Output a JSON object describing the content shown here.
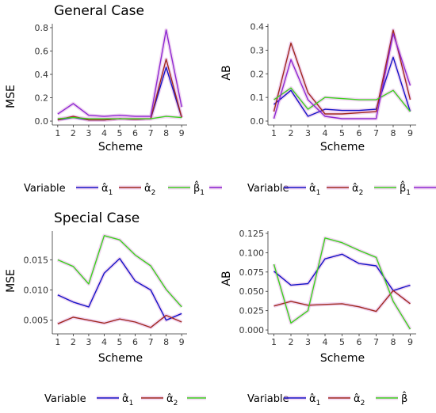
{
  "sections": [
    {
      "title": "General Case"
    },
    {
      "title": "Special Case"
    }
  ],
  "legend": {
    "variable_label": "Variable"
  },
  "colors": {
    "alpha1": "#1414c8",
    "alpha2": "#a0281e",
    "beta1": "#3cd21e",
    "extra": "#8c28d2",
    "glow": "#e6b4e6"
  },
  "chart_data": [
    {
      "type": "line",
      "section": "General Case",
      "xlabel": "Scheme",
      "ylabel": "MSE",
      "x": [
        1,
        2,
        3,
        4,
        5,
        6,
        7,
        8,
        9
      ],
      "xticks": [
        "1",
        "2",
        "3",
        "4",
        "5",
        "6",
        "7",
        "8",
        "9"
      ],
      "ylim": [
        -0.02,
        0.82
      ],
      "yticks": [
        0.0,
        0.2,
        0.4,
        0.6,
        0.8
      ],
      "ytick_labels": [
        "0.0",
        "0.2",
        "0.4",
        "0.6",
        "0.8"
      ],
      "grid": false,
      "series": [
        {
          "key": "alpha1",
          "label": "α̂1",
          "values": [
            0.01,
            0.03,
            0.01,
            0.01,
            0.02,
            0.015,
            0.02,
            0.46,
            0.03
          ]
        },
        {
          "key": "alpha2",
          "label": "α̂2",
          "values": [
            0.01,
            0.04,
            0.01,
            0.01,
            0.02,
            0.015,
            0.02,
            0.53,
            0.03
          ]
        },
        {
          "key": "beta1",
          "label": "β̂1",
          "values": [
            0.02,
            0.03,
            0.02,
            0.02,
            0.02,
            0.02,
            0.02,
            0.04,
            0.03
          ]
        },
        {
          "key": "extra",
          "label": "",
          "values": [
            0.06,
            0.15,
            0.05,
            0.04,
            0.05,
            0.04,
            0.04,
            0.78,
            0.12
          ]
        }
      ],
      "legend": {
        "placement": "bottom",
        "items": [
          {
            "key": "alpha1",
            "label": "α̂1"
          },
          {
            "key": "alpha2",
            "label": "α̂2"
          },
          {
            "key": "beta1",
            "label": "β̂1"
          },
          {
            "key": "extra",
            "label": ""
          }
        ]
      }
    },
    {
      "type": "line",
      "section": "General Case",
      "xlabel": "Scheme",
      "ylabel": "AB",
      "x": [
        1,
        2,
        3,
        4,
        5,
        6,
        7,
        8,
        9
      ],
      "xticks": [
        "1",
        "2",
        "3",
        "4",
        "5",
        "6",
        "7",
        "8",
        "9"
      ],
      "ylim": [
        -0.01,
        0.405
      ],
      "yticks": [
        0.0,
        0.1,
        0.2,
        0.3,
        0.4
      ],
      "ytick_labels": [
        "0.0",
        "0.1",
        "0.2",
        "0.3",
        "0.4"
      ],
      "grid": false,
      "series": [
        {
          "key": "alpha1",
          "label": "α̂1",
          "values": [
            0.07,
            0.13,
            0.02,
            0.05,
            0.045,
            0.045,
            0.05,
            0.27,
            0.04
          ]
        },
        {
          "key": "alpha2",
          "label": "α̂2",
          "values": [
            0.04,
            0.33,
            0.12,
            0.03,
            0.03,
            0.035,
            0.04,
            0.385,
            0.09
          ]
        },
        {
          "key": "beta1",
          "label": "β̂1",
          "values": [
            0.09,
            0.14,
            0.05,
            0.1,
            0.095,
            0.09,
            0.09,
            0.13,
            0.04
          ]
        },
        {
          "key": "extra",
          "label": "",
          "values": [
            0.01,
            0.26,
            0.09,
            0.02,
            0.01,
            0.01,
            0.01,
            0.37,
            0.15
          ]
        }
      ],
      "legend": {
        "placement": "bottom",
        "items": [
          {
            "key": "alpha1",
            "label": "α̂1"
          },
          {
            "key": "alpha2",
            "label": "α̂2"
          },
          {
            "key": "beta1",
            "label": "β̂1"
          },
          {
            "key": "extra",
            "label": ""
          }
        ]
      }
    },
    {
      "type": "line",
      "section": "Special Case",
      "xlabel": "Scheme",
      "ylabel": "MSE",
      "x": [
        1,
        2,
        3,
        4,
        5,
        6,
        7,
        8,
        9
      ],
      "xticks": [
        "1",
        "2",
        "3",
        "4",
        "5",
        "6",
        "7",
        "8",
        "9"
      ],
      "ylim": [
        0.003,
        0.0195
      ],
      "yticks": [
        0.005,
        0.01,
        0.015
      ],
      "ytick_labels": [
        "0.005",
        "0.010",
        "0.015"
      ],
      "grid": false,
      "series": [
        {
          "key": "alpha1",
          "label": "α̂1",
          "values": [
            0.0092,
            0.008,
            0.0072,
            0.0128,
            0.0152,
            0.0115,
            0.01,
            0.005,
            0.0061
          ]
        },
        {
          "key": "alpha2",
          "label": "α̂2",
          "values": [
            0.0044,
            0.0055,
            0.005,
            0.0045,
            0.0052,
            0.0047,
            0.0038,
            0.0058,
            0.0047
          ]
        },
        {
          "key": "beta1",
          "label": "",
          "values": [
            0.015,
            0.0139,
            0.011,
            0.019,
            0.0183,
            0.0158,
            0.014,
            0.0101,
            0.0072
          ]
        }
      ],
      "legend": {
        "placement": "bottom",
        "items": [
          {
            "key": "alpha1",
            "label": "α̂1"
          },
          {
            "key": "alpha2",
            "label": "α̂2"
          },
          {
            "key": "beta1",
            "label": ""
          }
        ]
      }
    },
    {
      "type": "line",
      "section": "Special Case",
      "xlabel": "Scheme",
      "ylabel": "AB",
      "x": [
        1,
        2,
        3,
        4,
        5,
        6,
        7,
        8,
        9
      ],
      "xticks": [
        "1",
        "2",
        "3",
        "4",
        "5",
        "6",
        "7",
        "8",
        "9"
      ],
      "ylim": [
        -0.003,
        0.126
      ],
      "yticks": [
        0.0,
        0.025,
        0.05,
        0.075,
        0.1,
        0.125
      ],
      "ytick_labels": [
        "0.000",
        "0.025",
        "0.050",
        "0.075",
        "0.100",
        "0.125"
      ],
      "grid": false,
      "series": [
        {
          "key": "alpha1",
          "label": "α̂1",
          "values": [
            0.076,
            0.058,
            0.06,
            0.092,
            0.098,
            0.086,
            0.083,
            0.051,
            0.058
          ]
        },
        {
          "key": "alpha2",
          "label": "α̂2",
          "values": [
            0.031,
            0.037,
            0.032,
            0.033,
            0.034,
            0.03,
            0.024,
            0.051,
            0.034
          ]
        },
        {
          "key": "beta1",
          "label": "β̂",
          "values": [
            0.085,
            0.009,
            0.025,
            0.119,
            0.113,
            0.103,
            0.094,
            0.037,
            0.001
          ]
        }
      ],
      "legend": {
        "placement": "bottom",
        "items": [
          {
            "key": "alpha1",
            "label": "α̂1"
          },
          {
            "key": "alpha2",
            "label": "α̂2"
          },
          {
            "key": "beta1",
            "label": "β̂"
          }
        ]
      }
    }
  ]
}
